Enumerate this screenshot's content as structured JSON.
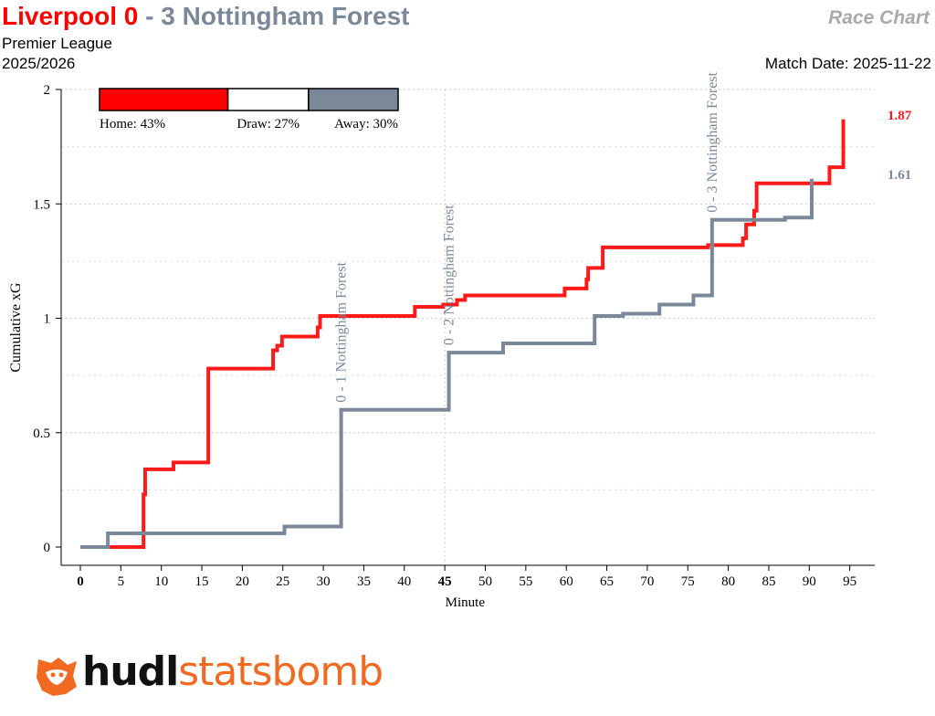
{
  "header": {
    "home_team": "Liverpool",
    "home_score": "0",
    "dash": "-",
    "away_score": "3",
    "away_team": "Nottingham Forest",
    "competition": "Premier League",
    "season": "2025/2026",
    "chart_label": "Race Chart",
    "match_date": "Match Date: 2025-11-22"
  },
  "logo": {
    "part1": "hudl",
    "part2": "statsbomb",
    "icon": "statsbomb-fox-icon"
  },
  "colors": {
    "home": "#ff1a1a",
    "away": "#7a8899",
    "draw": "#ffffff",
    "grid": "#cccccc"
  },
  "chart_data": {
    "type": "line",
    "xlabel": "Minute",
    "ylabel": "Cumulative xG",
    "xlim": [
      0,
      97
    ],
    "ylim": [
      0,
      2
    ],
    "x_ticks": [
      0,
      5,
      10,
      15,
      20,
      25,
      30,
      35,
      40,
      45,
      50,
      55,
      60,
      65,
      70,
      75,
      80,
      85,
      90,
      95
    ],
    "y_ticks": [
      0,
      0.5,
      1,
      1.5,
      2
    ],
    "y_tick_labels": [
      "0",
      "0.5",
      "1",
      "1.5",
      "2"
    ],
    "bold_x_ticks": [
      0,
      45
    ],
    "halftime_line": 45,
    "probabilities": [
      {
        "label": "Home: 43%",
        "value": 43,
        "color": "#ff0000"
      },
      {
        "label": "Draw: 27%",
        "value": 27,
        "color": "#ffffff"
      },
      {
        "label": "Away: 30%",
        "value": 30,
        "color": "#7a8899"
      }
    ],
    "series": [
      {
        "name": "Liverpool",
        "color": "#ff1a1a",
        "final_label": "1.87",
        "steps": [
          [
            0,
            0
          ],
          [
            7.8,
            0.23
          ],
          [
            8.0,
            0.34
          ],
          [
            11.5,
            0.37
          ],
          [
            15.8,
            0.78
          ],
          [
            23.8,
            0.86
          ],
          [
            24.3,
            0.88
          ],
          [
            24.9,
            0.92
          ],
          [
            29.3,
            0.96
          ],
          [
            29.6,
            1.01
          ],
          [
            41.3,
            1.05
          ],
          [
            44.8,
            1.06
          ],
          [
            46.5,
            1.08
          ],
          [
            47.5,
            1.1
          ],
          [
            59.8,
            1.13
          ],
          [
            62.5,
            1.17
          ],
          [
            62.7,
            1.22
          ],
          [
            64.5,
            1.31
          ],
          [
            77.5,
            1.32
          ],
          [
            81.8,
            1.35
          ],
          [
            82.2,
            1.41
          ],
          [
            83.2,
            1.47
          ],
          [
            83.5,
            1.59
          ],
          [
            92.5,
            1.66
          ],
          [
            94.2,
            1.87
          ]
        ],
        "end": 94.2
      },
      {
        "name": "Nottingham Forest",
        "color": "#7a8899",
        "final_label": "1.61",
        "steps": [
          [
            0,
            0
          ],
          [
            3.4,
            0.06
          ],
          [
            25.2,
            0.09
          ],
          [
            32.2,
            0.6
          ],
          [
            45.5,
            0.85
          ],
          [
            52.2,
            0.89
          ],
          [
            63.5,
            1.01
          ],
          [
            67.0,
            1.02
          ],
          [
            71.5,
            1.06
          ],
          [
            75.7,
            1.1
          ],
          [
            78.0,
            1.43
          ],
          [
            87.0,
            1.44
          ],
          [
            90.3,
            1.61
          ]
        ],
        "end": 90.3
      }
    ],
    "goals": [
      {
        "minute": 32.2,
        "label": "0 - 1 Nottingham Forest",
        "y": 0.6
      },
      {
        "minute": 45.5,
        "label": "0 - 2 Nottingham Forest",
        "y": 0.85
      },
      {
        "minute": 78.0,
        "label": "0 - 3 Nottingham Forest",
        "y": 1.43
      }
    ]
  }
}
